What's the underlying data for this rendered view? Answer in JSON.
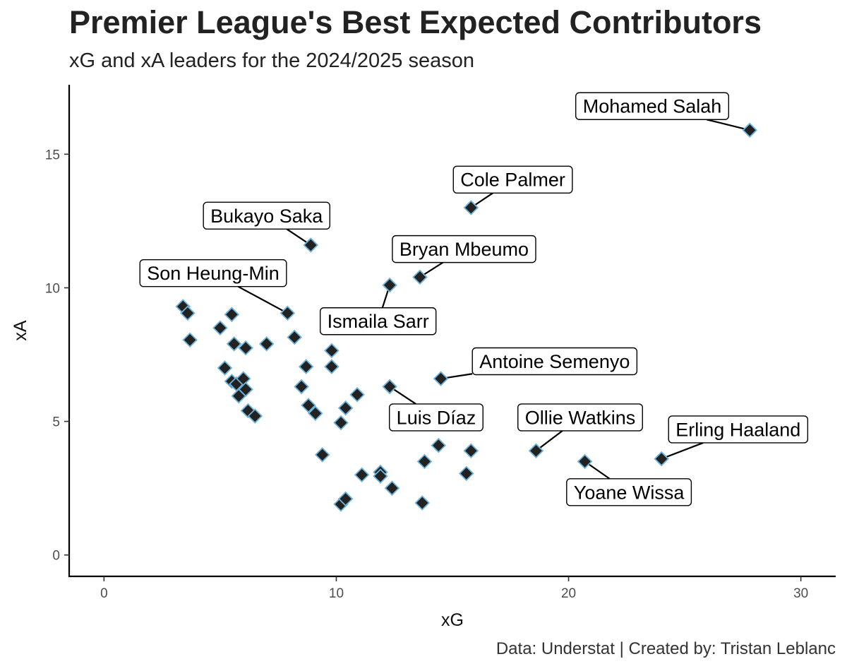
{
  "chart_data": {
    "type": "scatter",
    "title": "Premier League's Best Expected Contributors",
    "subtitle": "xG and xA leaders for the 2024/2025 season",
    "caption": "Data: Understat | Created by: Tristan Leblanc",
    "xlabel": "xG",
    "ylabel": "xA",
    "xlim": [
      -1.5,
      31.5
    ],
    "ylim": [
      -0.8,
      17.6
    ],
    "xticks": [
      0,
      10,
      20,
      30
    ],
    "yticks": [
      0,
      5,
      10,
      15
    ],
    "grid": false,
    "marker_fill": "#222222",
    "marker_stroke": "#6db3d9",
    "points": [
      {
        "x": 27.8,
        "y": 15.9,
        "name": "Mohamed Salah"
      },
      {
        "x": 15.8,
        "y": 13.0,
        "name": "Cole Palmer"
      },
      {
        "x": 8.9,
        "y": 11.6,
        "name": "Bukayo Saka"
      },
      {
        "x": 13.6,
        "y": 10.4,
        "name": "Bryan Mbeumo"
      },
      {
        "x": 12.3,
        "y": 10.1,
        "name": "Ismaila Sarr"
      },
      {
        "x": 7.9,
        "y": 9.05,
        "name": "Son Heung-Min"
      },
      {
        "x": 14.5,
        "y": 6.6,
        "name": "Antoine Semenyo"
      },
      {
        "x": 12.3,
        "y": 6.3,
        "name": "Luis Díaz"
      },
      {
        "x": 18.6,
        "y": 3.9,
        "name": "Ollie Watkins"
      },
      {
        "x": 24.0,
        "y": 3.6,
        "name": "Erling Haaland"
      },
      {
        "x": 20.7,
        "y": 3.5,
        "name": "Yoane Wissa"
      },
      {
        "x": 3.4,
        "y": 9.3
      },
      {
        "x": 3.6,
        "y": 9.05
      },
      {
        "x": 3.7,
        "y": 8.05
      },
      {
        "x": 5.0,
        "y": 8.5
      },
      {
        "x": 5.5,
        "y": 9.0
      },
      {
        "x": 5.6,
        "y": 7.9
      },
      {
        "x": 6.1,
        "y": 7.75
      },
      {
        "x": 7.0,
        "y": 7.9
      },
      {
        "x": 8.2,
        "y": 8.15
      },
      {
        "x": 5.2,
        "y": 7.0
      },
      {
        "x": 5.5,
        "y": 6.5
      },
      {
        "x": 5.7,
        "y": 6.4
      },
      {
        "x": 6.0,
        "y": 6.6
      },
      {
        "x": 6.1,
        "y": 6.2
      },
      {
        "x": 5.8,
        "y": 5.95
      },
      {
        "x": 6.2,
        "y": 5.4
      },
      {
        "x": 6.5,
        "y": 5.2
      },
      {
        "x": 8.7,
        "y": 7.05
      },
      {
        "x": 8.5,
        "y": 6.3
      },
      {
        "x": 8.8,
        "y": 5.6
      },
      {
        "x": 9.1,
        "y": 5.3
      },
      {
        "x": 9.8,
        "y": 7.65
      },
      {
        "x": 9.8,
        "y": 7.05
      },
      {
        "x": 9.4,
        "y": 3.75
      },
      {
        "x": 10.2,
        "y": 4.95
      },
      {
        "x": 10.4,
        "y": 5.5
      },
      {
        "x": 10.9,
        "y": 6.0
      },
      {
        "x": 10.2,
        "y": 1.9
      },
      {
        "x": 10.4,
        "y": 2.1
      },
      {
        "x": 11.1,
        "y": 3.0
      },
      {
        "x": 11.9,
        "y": 3.1
      },
      {
        "x": 11.9,
        "y": 2.95
      },
      {
        "x": 12.4,
        "y": 2.5
      },
      {
        "x": 13.7,
        "y": 1.95
      },
      {
        "x": 13.8,
        "y": 3.5
      },
      {
        "x": 14.4,
        "y": 4.1
      },
      {
        "x": 15.6,
        "y": 3.05
      },
      {
        "x": 15.8,
        "y": 3.9
      }
    ],
    "labels": [
      {
        "name": "Mohamed Salah",
        "x": 27.8,
        "y": 15.9,
        "lx": 23.6,
        "ly": 16.8
      },
      {
        "name": "Cole Palmer",
        "x": 15.8,
        "y": 13.0,
        "lx": 17.6,
        "ly": 14.05
      },
      {
        "name": "Bukayo Saka",
        "x": 8.9,
        "y": 11.6,
        "lx": 7.0,
        "ly": 12.7
      },
      {
        "name": "Bryan Mbeumo",
        "x": 13.6,
        "y": 10.4,
        "lx": 15.5,
        "ly": 11.45
      },
      {
        "name": "Ismaila Sarr",
        "x": 12.3,
        "y": 10.1,
        "lx": 11.8,
        "ly": 8.75
      },
      {
        "name": "Son Heung-Min",
        "x": 7.9,
        "y": 9.05,
        "lx": 4.7,
        "ly": 10.55
      },
      {
        "name": "Antoine Semenyo",
        "x": 14.5,
        "y": 6.6,
        "lx": 19.4,
        "ly": 7.25
      },
      {
        "name": "Luis Díaz",
        "x": 12.3,
        "y": 6.3,
        "lx": 14.3,
        "ly": 5.15
      },
      {
        "name": "Ollie Watkins",
        "x": 18.6,
        "y": 3.9,
        "lx": 20.5,
        "ly": 5.15
      },
      {
        "name": "Erling Haaland",
        "x": 24.0,
        "y": 3.6,
        "lx": 27.3,
        "ly": 4.7
      },
      {
        "name": "Yoane Wissa",
        "x": 20.7,
        "y": 3.5,
        "lx": 22.6,
        "ly": 2.35
      }
    ]
  }
}
